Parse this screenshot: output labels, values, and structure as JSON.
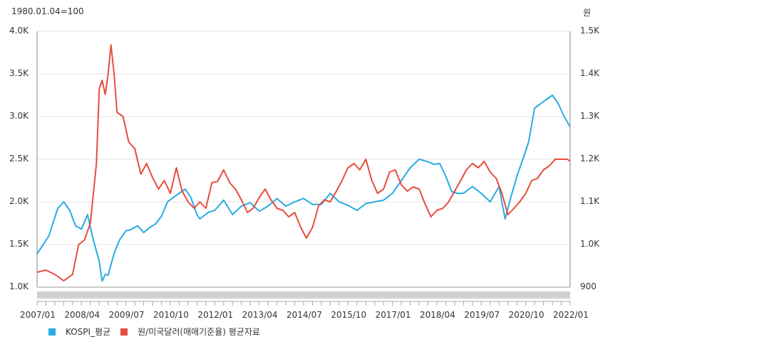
{
  "chart_data": {
    "type": "line",
    "left_axis_title": "1980.01.04=100",
    "right_axis_title": "원",
    "left_ticks": [
      "1.0K",
      "1.5K",
      "2.0K",
      "2.5K",
      "3.0K",
      "3.5K",
      "4.0K"
    ],
    "left_values": [
      1000,
      1500,
      2000,
      2500,
      3000,
      3500,
      4000
    ],
    "right_ticks": [
      "900",
      "1.0K",
      "1.1K",
      "1.2K",
      "1.3K",
      "1.4K",
      "1.5K"
    ],
    "right_values": [
      900,
      1000,
      1100,
      1200,
      1300,
      1400,
      1500
    ],
    "left_ylim": [
      1000,
      4000
    ],
    "right_ylim": [
      900,
      1500
    ],
    "x_ticks": [
      "2007/01",
      "2008/04",
      "2009/07",
      "2010/10",
      "2012/01",
      "2013/04",
      "2014/07",
      "2015/10",
      "2017/01",
      "2018/04",
      "2019/07",
      "2020/10",
      "2022/01"
    ],
    "grid": true,
    "legend_position": "bottom-left",
    "series": [
      {
        "name": "KOSPI_평균",
        "axis": "left",
        "color": "#29abe2",
        "x": [
          2007.0,
          2007.33,
          2007.58,
          2007.75,
          2007.92,
          2008.08,
          2008.25,
          2008.42,
          2008.58,
          2008.75,
          2008.83,
          2008.92,
          2009.0,
          2009.17,
          2009.33,
          2009.5,
          2009.67,
          2009.83,
          2010.0,
          2010.17,
          2010.33,
          2010.5,
          2010.67,
          2010.83,
          2011.0,
          2011.17,
          2011.33,
          2011.5,
          2011.58,
          2011.67,
          2011.83,
          2012.0,
          2012.25,
          2012.5,
          2012.75,
          2013.0,
          2013.25,
          2013.5,
          2013.75,
          2014.0,
          2014.25,
          2014.5,
          2014.75,
          2015.0,
          2015.25,
          2015.5,
          2015.75,
          2016.0,
          2016.25,
          2016.5,
          2016.75,
          2017.0,
          2017.25,
          2017.5,
          2017.75,
          2018.0,
          2018.17,
          2018.33,
          2018.5,
          2018.67,
          2018.83,
          2019.0,
          2019.25,
          2019.5,
          2019.75,
          2020.0,
          2020.17,
          2020.33,
          2020.5,
          2020.67,
          2020.83,
          2021.0,
          2021.17,
          2021.33,
          2021.5,
          2021.67,
          2021.83,
          2022.0
        ],
        "values": [
          1390,
          1600,
          1920,
          2000,
          1900,
          1720,
          1680,
          1850,
          1560,
          1300,
          1070,
          1150,
          1140,
          1400,
          1560,
          1660,
          1680,
          1720,
          1640,
          1700,
          1740,
          1830,
          2000,
          2050,
          2100,
          2150,
          2050,
          1850,
          1800,
          1830,
          1880,
          1900,
          2020,
          1850,
          1950,
          1990,
          1890,
          1950,
          2040,
          1950,
          2000,
          2040,
          1970,
          1970,
          2100,
          2000,
          1960,
          1900,
          1980,
          2000,
          2020,
          2100,
          2250,
          2400,
          2500,
          2470,
          2440,
          2450,
          2300,
          2120,
          2100,
          2100,
          2180,
          2100,
          2000,
          2180,
          1800,
          2050,
          2300,
          2500,
          2700,
          3100,
          3150,
          3200,
          3250,
          3150,
          3000,
          2880
        ]
      },
      {
        "name": "원/미국달러(매매기준율) 평균자료",
        "axis": "right",
        "color": "#e74c3c",
        "x": [
          2007.0,
          2007.25,
          2007.5,
          2007.75,
          2008.0,
          2008.17,
          2008.33,
          2008.5,
          2008.67,
          2008.75,
          2008.83,
          2008.92,
          2009.0,
          2009.08,
          2009.17,
          2009.25,
          2009.42,
          2009.58,
          2009.75,
          2009.92,
          2010.08,
          2010.25,
          2010.42,
          2010.58,
          2010.75,
          2010.92,
          2011.08,
          2011.25,
          2011.42,
          2011.58,
          2011.75,
          2011.92,
          2012.08,
          2012.25,
          2012.42,
          2012.58,
          2012.75,
          2012.92,
          2013.08,
          2013.25,
          2013.42,
          2013.58,
          2013.75,
          2013.92,
          2014.08,
          2014.25,
          2014.42,
          2014.58,
          2014.75,
          2014.92,
          2015.08,
          2015.25,
          2015.42,
          2015.58,
          2015.75,
          2015.92,
          2016.08,
          2016.25,
          2016.42,
          2016.58,
          2016.75,
          2016.92,
          2017.08,
          2017.25,
          2017.42,
          2017.58,
          2017.75,
          2017.92,
          2018.08,
          2018.25,
          2018.42,
          2018.58,
          2018.75,
          2018.92,
          2019.08,
          2019.25,
          2019.42,
          2019.58,
          2019.75,
          2019.92,
          2020.08,
          2020.25,
          2020.42,
          2020.58,
          2020.75,
          2020.92,
          2021.08,
          2021.25,
          2021.42,
          2021.58,
          2021.75,
          2021.92,
          2022.0
        ],
        "values": [
          935,
          940,
          930,
          915,
          930,
          1000,
          1010,
          1050,
          1190,
          1365,
          1385,
          1352,
          1400,
          1468,
          1398,
          1310,
          1300,
          1240,
          1225,
          1165,
          1190,
          1157,
          1130,
          1150,
          1120,
          1180,
          1125,
          1100,
          1085,
          1100,
          1085,
          1145,
          1148,
          1175,
          1145,
          1130,
          1105,
          1075,
          1085,
          1110,
          1130,
          1105,
          1085,
          1080,
          1065,
          1075,
          1040,
          1015,
          1040,
          1090,
          1105,
          1100,
          1125,
          1150,
          1180,
          1190,
          1175,
          1200,
          1150,
          1120,
          1130,
          1170,
          1175,
          1140,
          1125,
          1135,
          1130,
          1095,
          1065,
          1080,
          1085,
          1100,
          1125,
          1150,
          1175,
          1190,
          1180,
          1195,
          1170,
          1155,
          1120,
          1070,
          1085,
          1100,
          1120,
          1150,
          1155,
          1175,
          1185,
          1200,
          1200,
          1200,
          1195
        ]
      }
    ]
  }
}
